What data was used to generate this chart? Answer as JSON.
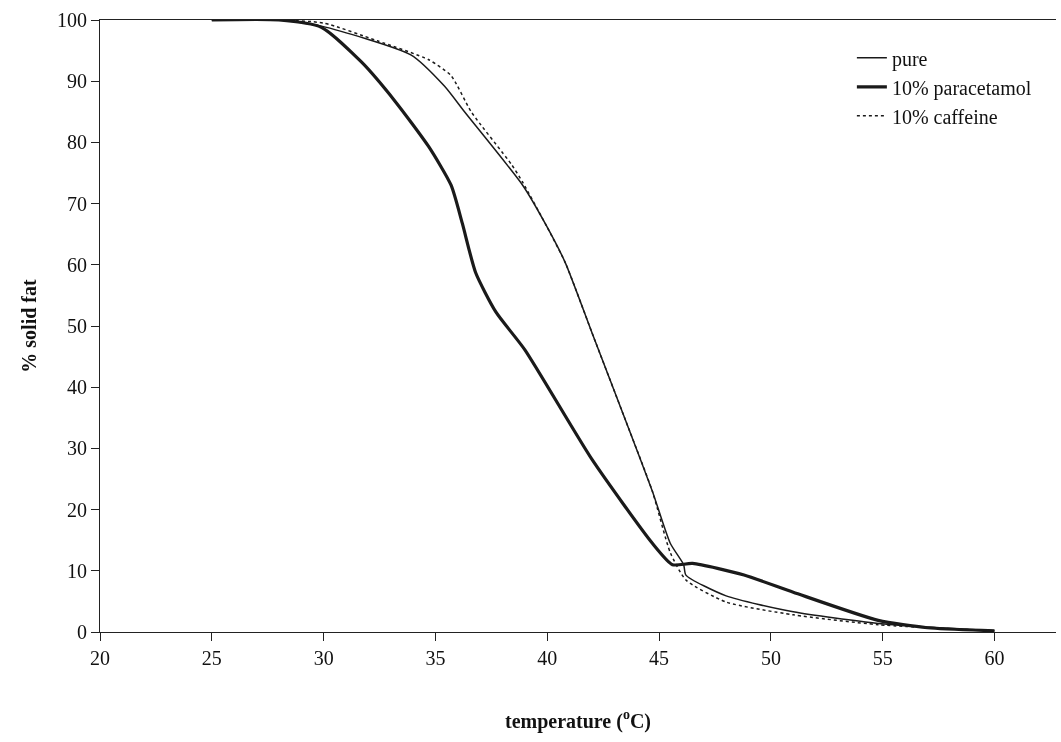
{
  "chart_data": {
    "type": "line",
    "xlabel": "temperature ($^{o}$C)",
    "ylabel": "% solid fat",
    "xlim": [
      20,
      62.75
    ],
    "xticks": [
      20,
      25,
      30,
      35,
      40,
      45,
      50,
      55,
      60
    ],
    "ylim": [
      0,
      100
    ],
    "yticks": [
      0,
      10,
      20,
      30,
      40,
      50,
      60,
      70,
      80,
      90,
      100
    ],
    "legend": "top right",
    "marker": "none",
    "series": [
      {
        "name": "pure",
        "color": "#1a1a1a",
        "line_style": "solid",
        "x": [
          25,
          28,
          29.9,
          33.9,
          35.4,
          36.3,
          38.9,
          39.9,
          40.8,
          42.0,
          43.5,
          44.7,
          45.5,
          46.1,
          46.2,
          48.0,
          51.0,
          54.8,
          60
        ],
        "values": [
          100,
          100,
          99,
          94.3,
          89.2,
          85,
          73,
          66.8,
          60.4,
          48.9,
          34.6,
          23,
          14.5,
          11,
          9.3,
          5.9,
          3.3,
          1.4,
          0.2
        ]
      },
      {
        "name": "10% paracetamol",
        "color": "#1a1a1a",
        "line_style": "solid",
        "x": [
          25,
          28,
          29.9,
          31.7,
          33.2,
          34.7,
          35.7,
          36.2,
          36.8,
          37.7,
          39.0,
          42.0,
          44.7,
          45.6,
          46.5,
          48.8,
          51.0,
          54.8,
          57.0,
          60
        ],
        "values": [
          100,
          100,
          98.8,
          93.1,
          86.7,
          79.3,
          73,
          66.8,
          58.7,
          52.3,
          46.1,
          28.2,
          14.5,
          11,
          11.2,
          9.3,
          6.5,
          1.9,
          0.7,
          0.2
        ]
      },
      {
        "name": "10% caffeine",
        "color": "#1a1a1a",
        "line_style": "dotted",
        "x": [
          25,
          28,
          30,
          32.4,
          34.7,
          35.7,
          36.6,
          38.4,
          38.9,
          39.9,
          40.8,
          42.0,
          43.5,
          44.7,
          45.5,
          46.2,
          48.0,
          51.0,
          54.8,
          60
        ],
        "values": [
          100,
          100,
          99.5,
          96.6,
          93.5,
          90.9,
          85,
          76.4,
          73.5,
          66.8,
          60.4,
          48.9,
          34.6,
          23,
          13,
          8.5,
          4.9,
          2.8,
          1.2,
          0.2
        ]
      }
    ]
  }
}
